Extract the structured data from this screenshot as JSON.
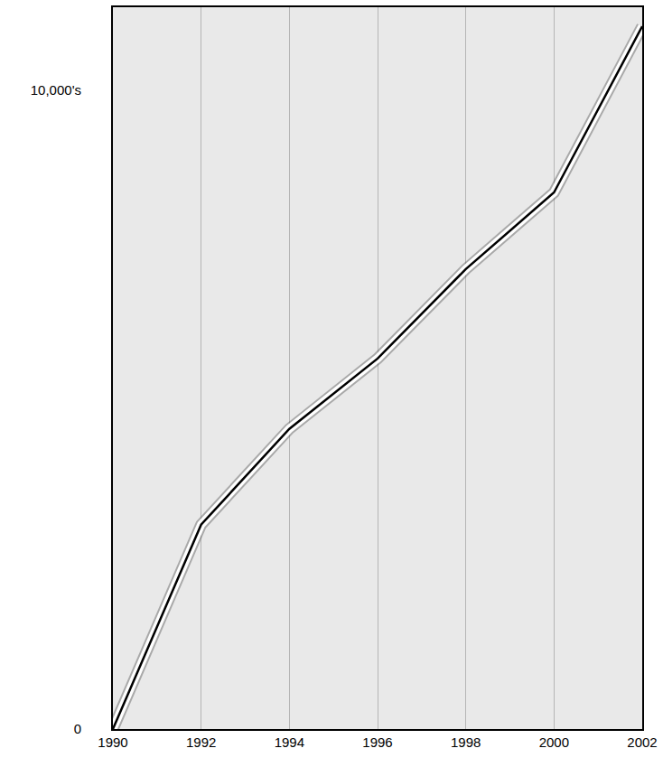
{
  "chart_data": {
    "type": "line",
    "x": [
      1990,
      1992,
      1994,
      1996,
      1998,
      2000,
      2002
    ],
    "values": [
      0,
      3200,
      4700,
      5800,
      7200,
      8400,
      11000
    ],
    "color": "#000000",
    "xlim": [
      1990,
      2002
    ],
    "xticks": [
      1990,
      1992,
      1994,
      1996,
      1998,
      2000,
      2002
    ],
    "ylim": [
      0,
      11300
    ],
    "yticks": [
      0,
      {
        "value": 10000,
        "label": "10,000's"
      }
    ],
    "grid": true
  }
}
